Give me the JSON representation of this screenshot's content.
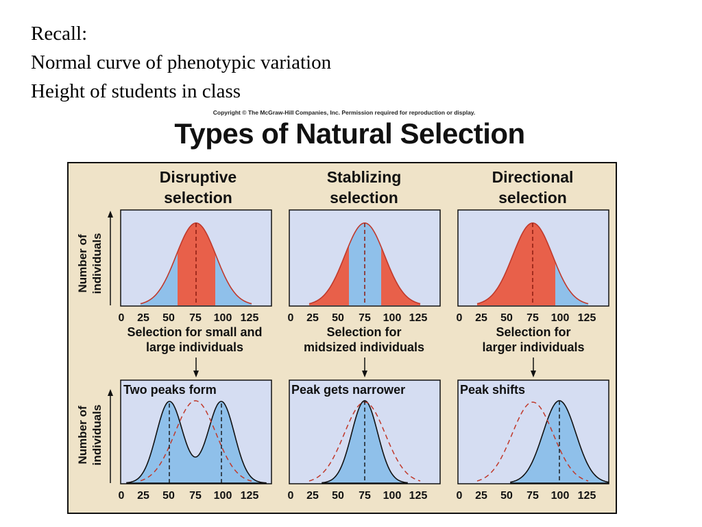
{
  "intro_lines": [
    "Recall:",
    "Normal curve of phenotypic variation",
    "Height of students in class"
  ],
  "figure": {
    "copyright": "Copyright © The McGraw-Hill Companies, Inc. Permission required for reproduction or display.",
    "title": "Types of Natural Selection",
    "y_label_line1": "Number of",
    "y_label_line2": "individuals",
    "x_ticks": [
      "0",
      "25",
      "50",
      "75",
      "100",
      "125"
    ],
    "panels": [
      {
        "header_line1": "Disruptive",
        "header_line2": "selection",
        "caption_line1": "Selection for small and",
        "caption_line2": "large individuals",
        "result_label": "Two peaks form"
      },
      {
        "header_line1": "Stablizing",
        "header_line2": "selection",
        "caption_line1": "Selection for",
        "caption_line2": "midsized individuals",
        "result_label": "Peak gets narrower"
      },
      {
        "header_line1": "Directional",
        "header_line2": "selection",
        "caption_line1": "Selection for",
        "caption_line2": "larger individuals",
        "result_label": "Peak shifts"
      }
    ],
    "colors": {
      "background": "#efe3c8",
      "plot_bg": "#d5ddf2",
      "favored_blue": "#8fc0ea",
      "selected_red": "#e8604a",
      "dashed_curve": "#c0392b",
      "border": "#111111"
    }
  }
}
